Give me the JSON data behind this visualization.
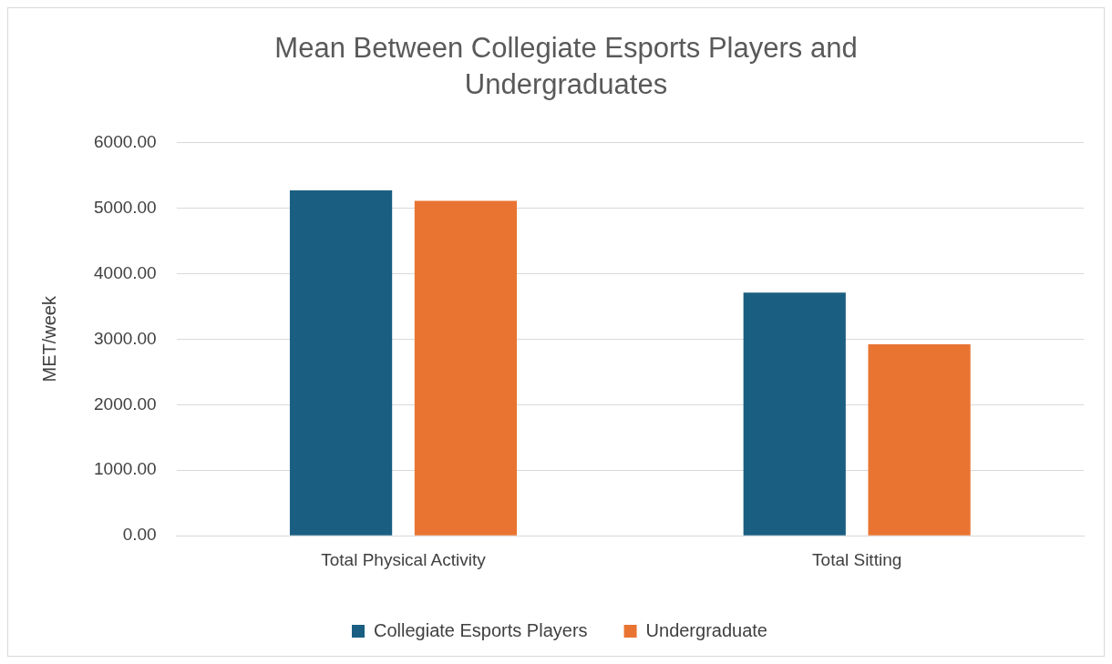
{
  "chart_data": {
    "type": "bar",
    "title": "Mean Between Collegiate Esports Players and Undergraduates",
    "ylabel": "MET/week",
    "categories": [
      "Total Physical Activity",
      "Total Sitting"
    ],
    "series": [
      {
        "name": "Collegiate Esports Players",
        "color": "#1a5f82",
        "values": [
          5270,
          3710
        ]
      },
      {
        "name": "Undergraduate",
        "color": "#e97432",
        "values": [
          5110,
          2920
        ]
      }
    ],
    "ylim": [
      0,
      6000
    ],
    "yticks": [
      {
        "value": 0,
        "label": "0.00"
      },
      {
        "value": 1000,
        "label": "1000.00"
      },
      {
        "value": 2000,
        "label": "2000.00"
      },
      {
        "value": 3000,
        "label": "3000.00"
      },
      {
        "value": 4000,
        "label": "4000.00"
      },
      {
        "value": 5000,
        "label": "5000.00"
      },
      {
        "value": 6000,
        "label": "6000.00"
      }
    ],
    "grid": "y",
    "legend": "bottom"
  }
}
